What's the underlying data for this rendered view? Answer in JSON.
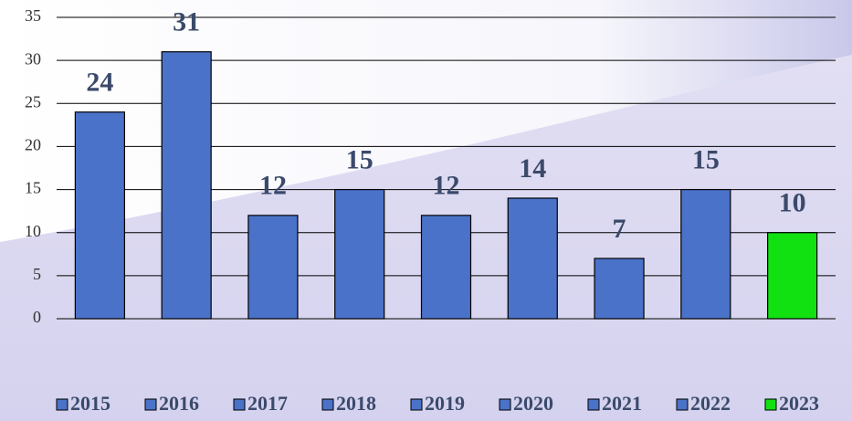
{
  "chart_data": {
    "type": "bar",
    "categories": [
      "2015",
      "2016",
      "2017",
      "2018",
      "2019",
      "2020",
      "2021",
      "2022",
      "2023"
    ],
    "values": [
      24,
      31,
      12,
      15,
      12,
      14,
      7,
      15,
      10
    ],
    "colors": [
      "#4a72c8",
      "#4a72c8",
      "#4a72c8",
      "#4a72c8",
      "#4a72c8",
      "#4a72c8",
      "#4a72c8",
      "#4a72c8",
      "#11e011"
    ],
    "ylim": [
      0,
      35
    ],
    "yticks": [
      0,
      5,
      10,
      15,
      20,
      25,
      30,
      35
    ],
    "grid": true,
    "legend": "bottom"
  }
}
